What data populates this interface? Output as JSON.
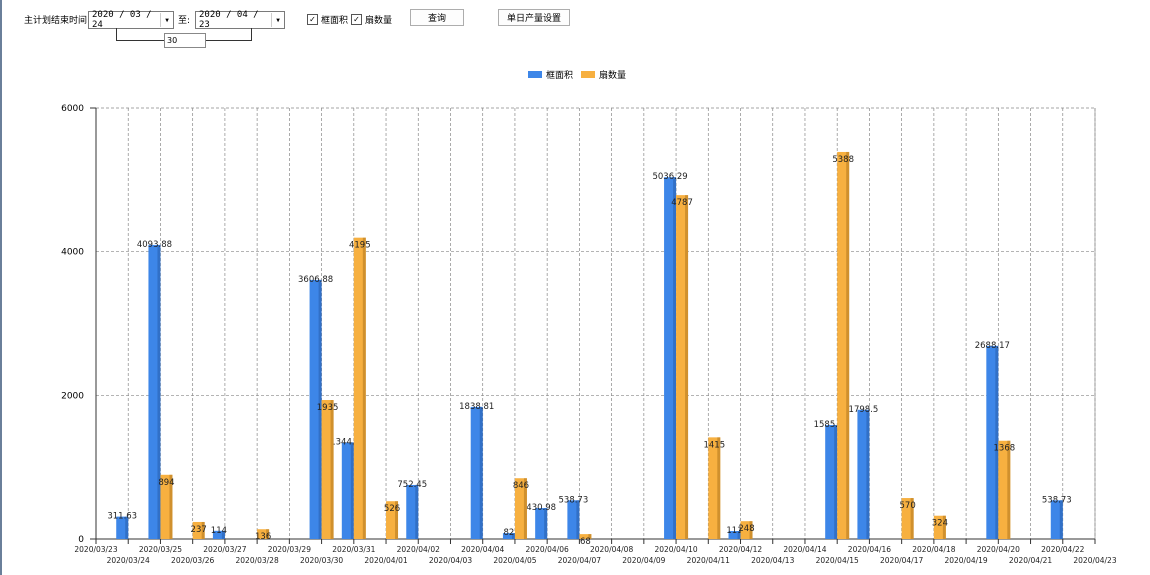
{
  "toolbar": {
    "end_label": "主计划结束时间:",
    "start_date": "2020 / 03 / 24",
    "to_label": "至:",
    "end_date": "2020 / 04 / 23",
    "days": "30",
    "check_area": "框面积",
    "check_count": "扇数量",
    "query": "查询",
    "settings": "单日产量设置"
  },
  "chart_data": {
    "type": "bar",
    "categories": [
      "2020/03/23",
      "2020/03/24",
      "2020/03/25",
      "2020/03/26",
      "2020/03/27",
      "2020/03/28",
      "2020/03/29",
      "2020/03/30",
      "2020/03/31",
      "2020/04/01",
      "2020/04/02",
      "2020/04/03",
      "2020/04/04",
      "2020/04/05",
      "2020/04/06",
      "2020/04/07",
      "2020/04/08",
      "2020/04/09",
      "2020/04/10",
      "2020/04/11",
      "2020/04/12",
      "2020/04/13",
      "2020/04/14",
      "2020/04/15",
      "2020/04/16",
      "2020/04/17",
      "2020/04/18",
      "2020/04/19",
      "2020/04/20",
      "2020/04/21",
      "2020/04/22",
      "2020/04/23"
    ],
    "series": [
      {
        "name": "框面积",
        "color": "#3d86e8",
        "values": [
          null,
          311.63,
          4093.88,
          null,
          114,
          null,
          null,
          3606.88,
          1344.95,
          null,
          752.45,
          null,
          1838.81,
          82,
          430.98,
          538.73,
          null,
          null,
          5036.29,
          null,
          111,
          null,
          null,
          1585.96,
          1798.5,
          null,
          null,
          null,
          2688.17,
          null,
          538.73,
          null
        ]
      },
      {
        "name": "扇数量",
        "color": "#f7b040",
        "values": [
          null,
          null,
          894,
          237,
          null,
          136,
          null,
          1935,
          4195,
          526,
          null,
          null,
          null,
          846,
          null,
          68,
          null,
          null,
          4787,
          1415,
          248,
          null,
          null,
          5388,
          null,
          570,
          324,
          null,
          1368,
          null,
          null,
          null
        ]
      }
    ],
    "yticks": [
      "0",
      "2000",
      "4000",
      "6000"
    ],
    "ylim": [
      0,
      6000
    ],
    "grid": true,
    "legend": "top-center"
  }
}
